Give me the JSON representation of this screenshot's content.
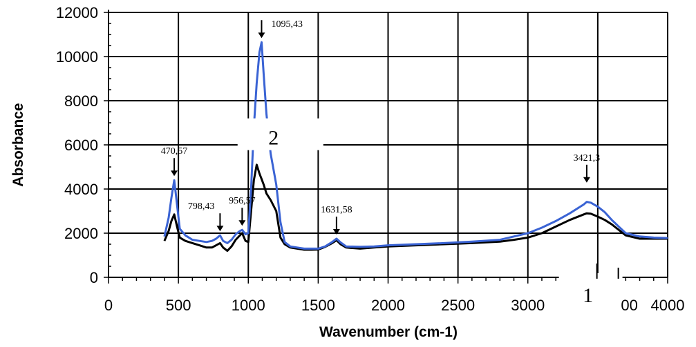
{
  "chart_data": {
    "type": "line",
    "title": "",
    "xlabel": "Wavenumber (cm-1)",
    "ylabel": "Absorbance",
    "xlim": [
      0,
      4000
    ],
    "ylim": [
      0,
      12000
    ],
    "x_ticks": [
      0,
      500,
      1000,
      1500,
      2000,
      2500,
      3000,
      3500,
      4000
    ],
    "x_tick_labels": [
      "0",
      "500",
      "1000",
      "1500",
      "2000",
      "2500",
      "3000",
      "",
      "4000"
    ],
    "y_ticks": [
      0,
      2000,
      4000,
      6000,
      8000,
      10000,
      12000
    ],
    "y_tick_labels": [
      "0",
      "2000",
      "4000",
      "6000",
      "8000",
      "10000",
      "12000"
    ],
    "grid": true,
    "series": [
      {
        "name": "1",
        "color": "#000000",
        "x": [
          400,
          430,
          450,
          470,
          490,
          510,
          550,
          600,
          650,
          700,
          740,
          770,
          798,
          820,
          850,
          880,
          910,
          940,
          956,
          980,
          1000,
          1020,
          1040,
          1060,
          1080,
          1095,
          1110,
          1130,
          1160,
          1200,
          1230,
          1260,
          1300,
          1350,
          1400,
          1450,
          1500,
          1550,
          1600,
          1631,
          1660,
          1700,
          1800,
          1900,
          2000,
          2200,
          2400,
          2600,
          2800,
          2900,
          3000,
          3100,
          3200,
          3300,
          3400,
          3421,
          3450,
          3500,
          3550,
          3600,
          3650,
          3700,
          3800,
          3900,
          4000
        ],
        "y": [
          1650,
          2100,
          2550,
          2850,
          2300,
          1800,
          1650,
          1550,
          1450,
          1350,
          1350,
          1450,
          1550,
          1350,
          1200,
          1400,
          1700,
          1900,
          2000,
          1650,
          1600,
          3000,
          4400,
          5100,
          4700,
          4450,
          4200,
          3800,
          3500,
          3000,
          1800,
          1500,
          1350,
          1300,
          1250,
          1250,
          1260,
          1380,
          1550,
          1680,
          1500,
          1350,
          1300,
          1350,
          1400,
          1450,
          1500,
          1550,
          1620,
          1700,
          1800,
          2000,
          2300,
          2600,
          2850,
          2900,
          2880,
          2750,
          2600,
          2400,
          2150,
          1900,
          1750,
          1750,
          1750
        ]
      },
      {
        "name": "2",
        "color": "#3a63d4",
        "x": [
          400,
          430,
          450,
          470,
          490,
          510,
          550,
          600,
          650,
          700,
          740,
          770,
          798,
          820,
          850,
          880,
          910,
          940,
          956,
          980,
          1000,
          1020,
          1040,
          1060,
          1080,
          1095,
          1110,
          1130,
          1160,
          1200,
          1230,
          1260,
          1300,
          1350,
          1400,
          1450,
          1500,
          1550,
          1600,
          1631,
          1660,
          1700,
          1800,
          1900,
          2000,
          2200,
          2400,
          2600,
          2800,
          2900,
          3000,
          3100,
          3200,
          3300,
          3400,
          3421,
          3450,
          3500,
          3550,
          3600,
          3650,
          3700,
          3800,
          3900,
          4000
        ],
        "y": [
          1850,
          2700,
          3600,
          4400,
          3300,
          2200,
          1900,
          1700,
          1650,
          1600,
          1650,
          1750,
          1900,
          1650,
          1550,
          1700,
          1950,
          2100,
          2150,
          1950,
          2000,
          4000,
          6800,
          8800,
          10200,
          10650,
          9200,
          7400,
          5600,
          4200,
          2500,
          1600,
          1400,
          1350,
          1300,
          1300,
          1300,
          1400,
          1600,
          1750,
          1580,
          1400,
          1380,
          1400,
          1450,
          1500,
          1550,
          1620,
          1700,
          1850,
          2000,
          2250,
          2550,
          2900,
          3300,
          3420,
          3380,
          3200,
          2950,
          2600,
          2300,
          2000,
          1850,
          1800,
          1780
        ]
      }
    ],
    "annotations": [
      {
        "text": "470,57",
        "x": 470,
        "y": 4400
      },
      {
        "text": "798,43",
        "x": 798,
        "y": 1900
      },
      {
        "text": "956,57",
        "x": 956,
        "y": 2150
      },
      {
        "text": "1095,43",
        "x": 1095,
        "y": 10650
      },
      {
        "text": "1631,58",
        "x": 1631,
        "y": 1750
      },
      {
        "text": "3421,3",
        "x": 3421,
        "y": 4100
      }
    ],
    "curve_labels": [
      {
        "text": "2",
        "x": 1230,
        "y": 6200
      },
      {
        "text": "1",
        "x": 3390,
        "y": -900
      }
    ]
  }
}
